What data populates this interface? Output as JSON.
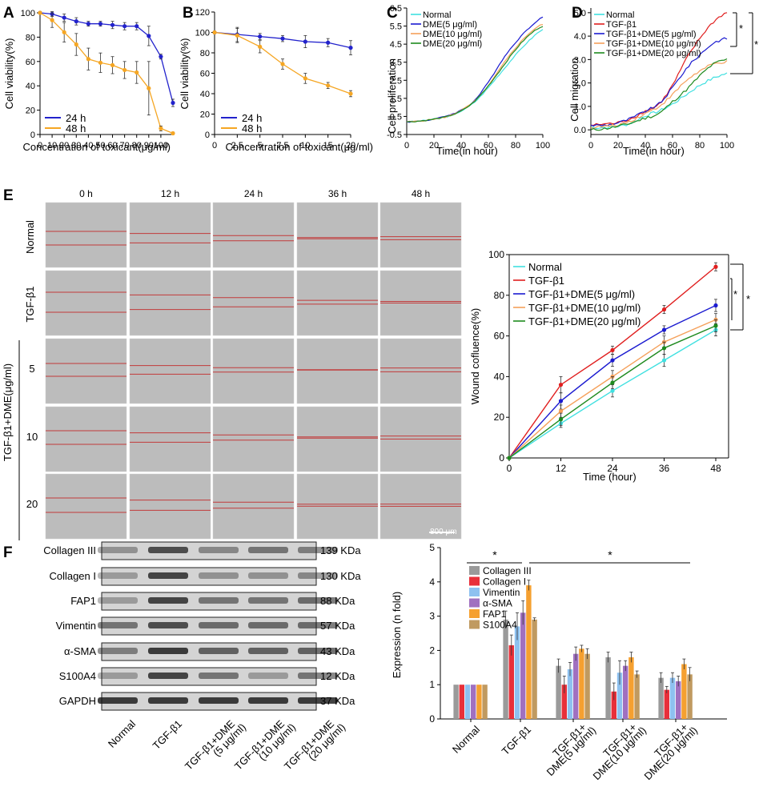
{
  "panels": {
    "A": {
      "letter": "A",
      "xlabel": "Concentration of toxicant(μg/ml)",
      "ylabel": "Cell viability(%)",
      "xticks": [
        "0",
        "10",
        "20",
        "30",
        "40",
        "50",
        "60",
        "70",
        "80",
        "90",
        "100"
      ],
      "yticks": [
        "0",
        "20",
        "40",
        "60",
        "80",
        "100"
      ],
      "legend": [
        "24 h",
        "48 h"
      ]
    },
    "B": {
      "letter": "B",
      "xlabel": "Concentration of toxicant(μg/ml)",
      "ylabel": "Cell viability(%)",
      "xticks": [
        "0",
        "2.5",
        "5",
        "7.5",
        "10",
        "15",
        "20"
      ],
      "yticks": [
        "0",
        "20",
        "40",
        "60",
        "80",
        "100",
        "120"
      ],
      "legend": [
        "24 h",
        "48 h"
      ]
    },
    "C": {
      "letter": "C",
      "xlabel": "Time(in hour)",
      "ylabel": "Cell proliferation",
      "xticks": [
        "0",
        "20",
        "40",
        "60",
        "80",
        "100"
      ],
      "yticks": [
        "-0.5",
        "0.5",
        "1.5",
        "2.5",
        "3.5",
        "4.5",
        "5.5",
        "6.5"
      ],
      "legend": [
        "Normal",
        "DME(5 μg/ml)",
        "DME(10 μg/ml)",
        "DME(20 μg/ml)"
      ]
    },
    "D": {
      "letter": "D",
      "xlabel": "Time(in hour)",
      "ylabel": "Cell migration",
      "xticks": [
        "0",
        "20",
        "40",
        "60",
        "80",
        "100"
      ],
      "yticks": [
        "0.0",
        "1.0",
        "2.0",
        "3.0",
        "4.0",
        "5.0"
      ],
      "legend": [
        "Normal",
        "TGF-β1",
        "TGF-β1+DME(5 μg/ml)",
        "TGF-β1+DME(10 μg/ml)",
        "TGF-β1+DME(20 μg/ml)"
      ],
      "sig": "*"
    },
    "E": {
      "letter": "E",
      "timepoints": [
        "0 h",
        "12 h",
        "24 h",
        "36 h",
        "48 h"
      ],
      "rows": [
        "Normal",
        "TGF-β1",
        "5",
        "10",
        "20"
      ],
      "group_label": "TGF-β1+DME(μg/ml)",
      "scale_bar": "800 μm"
    },
    "E_chart": {
      "xlabel": "Time (hour)",
      "ylabel": "Wound cofluence(%)",
      "xticks": [
        "0",
        "12",
        "24",
        "36",
        "48"
      ],
      "yticks": [
        "0",
        "20",
        "40",
        "60",
        "80",
        "100"
      ],
      "legend": [
        "Normal",
        "TGF-β1",
        "TGF-β1+DME(5 μg/ml)",
        "TGF-β1+DME(10 μg/ml)",
        "TGF-β1+DME(20 μg/ml)"
      ],
      "sig": "*"
    },
    "F": {
      "letter": "F",
      "proteins": [
        "Collagen III",
        "Collagen I",
        "FAP1",
        "Vimentin",
        "α-SMA",
        "S100A4",
        "GAPDH"
      ],
      "sizes": [
        "139 KDa",
        "130 KDa",
        "88 KDa",
        "57 KDa",
        "43 KDa",
        "12 KDa",
        "37 KDa"
      ],
      "lanes": [
        "Normal",
        "TGF-β1",
        "TGF-β1+DME (5 μg/ml)",
        "TGF-β1+DME (10 μg/ml)",
        "TGF-β1+DME (20 μg/ml)"
      ]
    },
    "F_chart": {
      "ylabel": "Expression (n fold)",
      "yticks": [
        "0",
        "1",
        "2",
        "3",
        "4",
        "5"
      ],
      "groups": [
        "Normal",
        "TGF-β1",
        "TGF-β1+ DME(5 μg/ml)",
        "TGF-β1+ DME(10 μg/ml)",
        "TGF-β1+ DME(20 μg/ml)"
      ],
      "legend": [
        "Collagen III",
        "Collagen I",
        "Vimentin",
        "α-SMA",
        "FAP1",
        "S100A4"
      ],
      "sig": "*"
    }
  },
  "colors": {
    "h24": "#2222cc",
    "h48": "#f5a623",
    "normal": "#40e0e0",
    "tgf": "#e01e1e",
    "d5": "#1a1ad0",
    "d10": "#f5a05a",
    "d20": "#1e8a1e",
    "col3": "#9a9a9a",
    "col1": "#e8303a",
    "vim": "#8ec1f0",
    "asma": "#a070c0",
    "fap1": "#f5a030",
    "s100": "#c09a60"
  },
  "chart_data": [
    {
      "panel": "A",
      "type": "line",
      "x": [
        0,
        10,
        20,
        30,
        40,
        50,
        60,
        70,
        80,
        90,
        100,
        110
      ],
      "ylim": [
        0,
        100
      ],
      "series": [
        {
          "name": "24 h",
          "values": [
            100,
            99,
            96,
            93,
            91,
            91,
            90,
            89,
            89,
            81,
            64,
            26
          ],
          "errors": [
            1,
            2,
            3,
            3,
            2,
            2,
            3,
            3,
            3,
            8,
            2,
            3
          ]
        },
        {
          "name": "48 h",
          "values": [
            100,
            94,
            84,
            74,
            62,
            59,
            57,
            53,
            51,
            38,
            5,
            1
          ],
          "errors": [
            1,
            6,
            8,
            9,
            9,
            8,
            7,
            7,
            9,
            22,
            2,
            1
          ]
        }
      ]
    },
    {
      "panel": "B",
      "type": "line",
      "x": [
        0,
        2.5,
        5,
        7.5,
        10,
        15,
        20
      ],
      "ylim": [
        0,
        120
      ],
      "series": [
        {
          "name": "24 h",
          "values": [
            100,
            98,
            96,
            94,
            91,
            90,
            85
          ],
          "errors": [
            1,
            7,
            3,
            3,
            6,
            4,
            7
          ]
        },
        {
          "name": "48 h",
          "values": [
            100,
            97,
            86,
            69,
            55,
            48,
            40
          ],
          "errors": [
            1,
            7,
            6,
            5,
            5,
            3,
            3
          ]
        }
      ]
    },
    {
      "panel": "C",
      "type": "line",
      "x": [
        0,
        10,
        20,
        30,
        40,
        50,
        60,
        70,
        80,
        90,
        100
      ],
      "ylim": [
        -0.5,
        6.5
      ],
      "series": [
        {
          "name": "Normal",
          "values": [
            0.2,
            0.25,
            0.35,
            0.5,
            0.8,
            1.3,
            2.1,
            3.0,
            3.9,
            4.7,
            5.3
          ]
        },
        {
          "name": "DME(5 μg/ml)",
          "values": [
            0.2,
            0.25,
            0.35,
            0.55,
            0.85,
            1.4,
            2.4,
            3.6,
            4.6,
            5.4,
            6.0
          ]
        },
        {
          "name": "DME(10 μg/ml)",
          "values": [
            0.2,
            0.25,
            0.35,
            0.5,
            0.85,
            1.35,
            2.2,
            3.3,
            4.3,
            5.1,
            5.6
          ]
        },
        {
          "name": "DME(20 μg/ml)",
          "values": [
            0.2,
            0.25,
            0.35,
            0.5,
            0.8,
            1.35,
            2.2,
            3.2,
            4.2,
            5.0,
            5.5
          ]
        }
      ]
    },
    {
      "panel": "D",
      "type": "line",
      "x": [
        0,
        10,
        20,
        30,
        40,
        50,
        60,
        70,
        80,
        90,
        100
      ],
      "ylim": [
        -0.2,
        5.2
      ],
      "series": [
        {
          "name": "Normal",
          "values": [
            0.1,
            0.1,
            0.15,
            0.3,
            0.6,
            0.8,
            1.1,
            1.5,
            1.9,
            2.2,
            2.4
          ]
        },
        {
          "name": "TGF-β1",
          "values": [
            0.2,
            0.25,
            0.3,
            0.5,
            0.8,
            1.1,
            1.9,
            3.0,
            3.9,
            4.6,
            5.0
          ]
        },
        {
          "name": "TGF-β1+DME(5 μg/ml)",
          "values": [
            0.2,
            0.2,
            0.3,
            0.5,
            0.8,
            1.1,
            1.8,
            2.6,
            3.2,
            3.7,
            3.9
          ]
        },
        {
          "name": "TGF-β1+DME(10 μg/ml)",
          "values": [
            0.1,
            0.15,
            0.2,
            0.4,
            0.7,
            1.0,
            1.5,
            2.1,
            2.5,
            2.8,
            2.9
          ]
        },
        {
          "name": "TGF-β1+DME(20 μg/ml)",
          "values": [
            0.0,
            0.05,
            0.15,
            0.3,
            0.5,
            0.7,
            1.2,
            1.7,
            2.3,
            2.8,
            3.0
          ]
        }
      ]
    },
    {
      "panel": "E_chart",
      "type": "line",
      "x": [
        0,
        12,
        24,
        36,
        48
      ],
      "ylim": [
        0,
        100
      ],
      "series": [
        {
          "name": "Normal",
          "values": [
            0,
            17,
            33,
            48,
            63
          ],
          "errors": [
            0,
            2,
            3,
            3,
            3
          ]
        },
        {
          "name": "TGF-β1",
          "values": [
            0,
            36,
            53,
            73,
            94
          ],
          "errors": [
            0,
            4,
            2,
            2,
            2
          ]
        },
        {
          "name": "TGF-β1+DME(5 μg/ml)",
          "values": [
            0,
            28,
            48,
            63,
            75
          ],
          "errors": [
            0,
            4,
            3,
            2,
            3
          ]
        },
        {
          "name": "TGF-β1+DME(10 μg/ml)",
          "values": [
            0,
            23,
            40,
            57,
            68
          ],
          "errors": [
            0,
            3,
            3,
            3,
            3
          ]
        },
        {
          "name": "TGF-β1+DME(20 μg/ml)",
          "values": [
            0,
            19,
            37,
            54,
            65
          ],
          "errors": [
            0,
            3,
            3,
            3,
            3
          ]
        }
      ]
    },
    {
      "panel": "F_chart",
      "type": "bar",
      "categories": [
        "Normal",
        "TGF-β1",
        "TGF-β1+ DME(5 μg/ml)",
        "TGF-β1+ DME(10 μg/ml)",
        "TGF-β1+ DME(20 μg/ml)"
      ],
      "ylim": [
        0,
        5
      ],
      "series": [
        {
          "name": "Collagen III",
          "values": [
            1,
            2.9,
            1.55,
            1.8,
            1.2
          ],
          "errors": [
            0,
            0.25,
            0.2,
            0.15,
            0.15
          ]
        },
        {
          "name": "Collagen I",
          "values": [
            1,
            2.15,
            1.0,
            0.8,
            0.85
          ],
          "errors": [
            0,
            0.3,
            0.25,
            0.25,
            0.1
          ]
        },
        {
          "name": "Vimentin",
          "values": [
            1,
            2.7,
            1.45,
            1.35,
            1.2
          ],
          "errors": [
            0,
            0.4,
            0.2,
            0.35,
            0.15
          ]
        },
        {
          "name": "α-SMA",
          "values": [
            1,
            3.1,
            1.9,
            1.55,
            1.1
          ],
          "errors": [
            0,
            0.35,
            0.2,
            0.15,
            0.15
          ]
        },
        {
          "name": "FAP1",
          "values": [
            1,
            3.9,
            2.05,
            1.8,
            1.6
          ],
          "errors": [
            0,
            0.15,
            0.1,
            0.15,
            0.15
          ]
        },
        {
          "name": "S100A4",
          "values": [
            1,
            2.9,
            1.9,
            1.3,
            1.3
          ],
          "errors": [
            0,
            0.05,
            0.15,
            0.1,
            0.2
          ]
        }
      ]
    }
  ]
}
